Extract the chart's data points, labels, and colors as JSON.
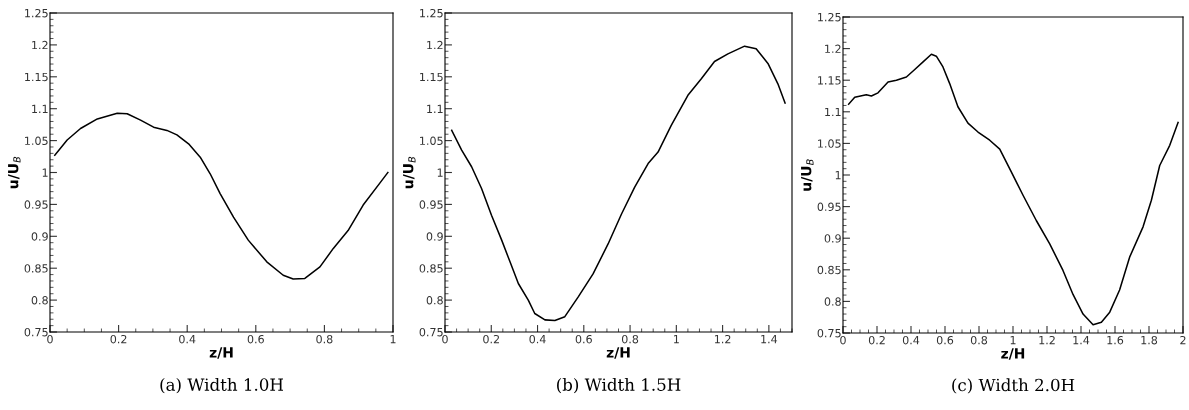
{
  "chart_data": [
    {
      "type": "line",
      "title": "(a) Width 1.0H",
      "xlabel": "z/H",
      "ylabel": "u/U$_{B}$",
      "xlim": [
        0,
        1
      ],
      "xticks": [
        0,
        0.2,
        0.4,
        0.6,
        0.8,
        1
      ],
      "ylim": [
        0.75,
        1.25
      ],
      "yticks": [
        0.75,
        0.8,
        0.85,
        0.9,
        0.95,
        1,
        1.05,
        1.1,
        1.15,
        1.2,
        1.25
      ],
      "series": [
        {
          "color": "#000000",
          "x": [
            0.014,
            0.05,
            0.089,
            0.138,
            0.196,
            0.225,
            0.264,
            0.302,
            0.341,
            0.37,
            0.404,
            0.438,
            0.467,
            0.496,
            0.535,
            0.578,
            0.632,
            0.68,
            0.709,
            0.743,
            0.787,
            0.826,
            0.869,
            0.913,
            0.961,
            0.985
          ],
          "values": [
            1.027,
            1.051,
            1.069,
            1.084,
            1.093,
            1.092,
            1.082,
            1.071,
            1.066,
            1.059,
            1.045,
            1.024,
            0.998,
            0.967,
            0.93,
            0.894,
            0.86,
            0.839,
            0.833,
            0.834,
            0.852,
            0.881,
            0.909,
            0.949,
            0.983,
            1.0
          ]
        }
      ]
    },
    {
      "type": "line",
      "title": "(b) Width 1.5H",
      "xlabel": "z/H",
      "ylabel": "u/U$_{B}$",
      "xlim": [
        0,
        1.5
      ],
      "xticks": [
        0,
        0.2,
        0.4,
        0.6,
        0.8,
        1,
        1.2,
        1.4
      ],
      "ylim": [
        0.75,
        1.25
      ],
      "yticks": [
        0.75,
        0.8,
        0.85,
        0.9,
        0.95,
        1,
        1.05,
        1.1,
        1.15,
        1.2,
        1.25
      ],
      "series": [
        {
          "color": "#000000",
          "x": [
            0.029,
            0.072,
            0.115,
            0.158,
            0.201,
            0.245,
            0.281,
            0.317,
            0.36,
            0.388,
            0.432,
            0.475,
            0.518,
            0.576,
            0.64,
            0.705,
            0.763,
            0.82,
            0.878,
            0.921,
            0.978,
            1.05,
            1.108,
            1.165,
            1.223,
            1.295,
            1.345,
            1.396,
            1.439,
            1.47
          ],
          "values": [
            1.066,
            1.035,
            1.009,
            0.975,
            0.933,
            0.894,
            0.86,
            0.826,
            0.8,
            0.779,
            0.769,
            0.768,
            0.774,
            0.805,
            0.841,
            0.888,
            0.935,
            0.977,
            1.014,
            1.032,
            1.074,
            1.121,
            1.147,
            1.174,
            1.186,
            1.198,
            1.194,
            1.171,
            1.139,
            1.109
          ]
        }
      ]
    },
    {
      "type": "line",
      "title": "(c) Width 2.0H",
      "xlabel": "z/H",
      "ylabel": "u/U$_{B}$",
      "xlim": [
        0,
        2
      ],
      "xticks": [
        0,
        0.2,
        0.4,
        0.6,
        0.8,
        1,
        1.2,
        1.4,
        1.6,
        1.8,
        2
      ],
      "ylim": [
        0.75,
        1.25
      ],
      "yticks": [
        0.75,
        0.8,
        0.85,
        0.9,
        0.95,
        1,
        1.05,
        1.1,
        1.15,
        1.2,
        1.25
      ],
      "series": [
        {
          "color": "#000000",
          "x": [
            0.033,
            0.069,
            0.137,
            0.167,
            0.206,
            0.265,
            0.314,
            0.373,
            0.422,
            0.471,
            0.52,
            0.549,
            0.588,
            0.627,
            0.676,
            0.735,
            0.794,
            0.863,
            0.922,
            0.99,
            1.059,
            1.137,
            1.216,
            1.294,
            1.353,
            1.412,
            1.471,
            1.52,
            1.569,
            1.627,
            1.686,
            1.765,
            1.814,
            1.863,
            1.922,
            1.971
          ],
          "values": [
            1.112,
            1.123,
            1.127,
            1.125,
            1.13,
            1.147,
            1.15,
            1.155,
            1.167,
            1.179,
            1.191,
            1.188,
            1.171,
            1.145,
            1.108,
            1.082,
            1.068,
            1.055,
            1.041,
            1.005,
            0.968,
            0.928,
            0.891,
            0.849,
            0.811,
            0.78,
            0.763,
            0.767,
            0.783,
            0.818,
            0.87,
            0.918,
            0.96,
            1.015,
            1.047,
            1.083
          ]
        }
      ]
    }
  ]
}
